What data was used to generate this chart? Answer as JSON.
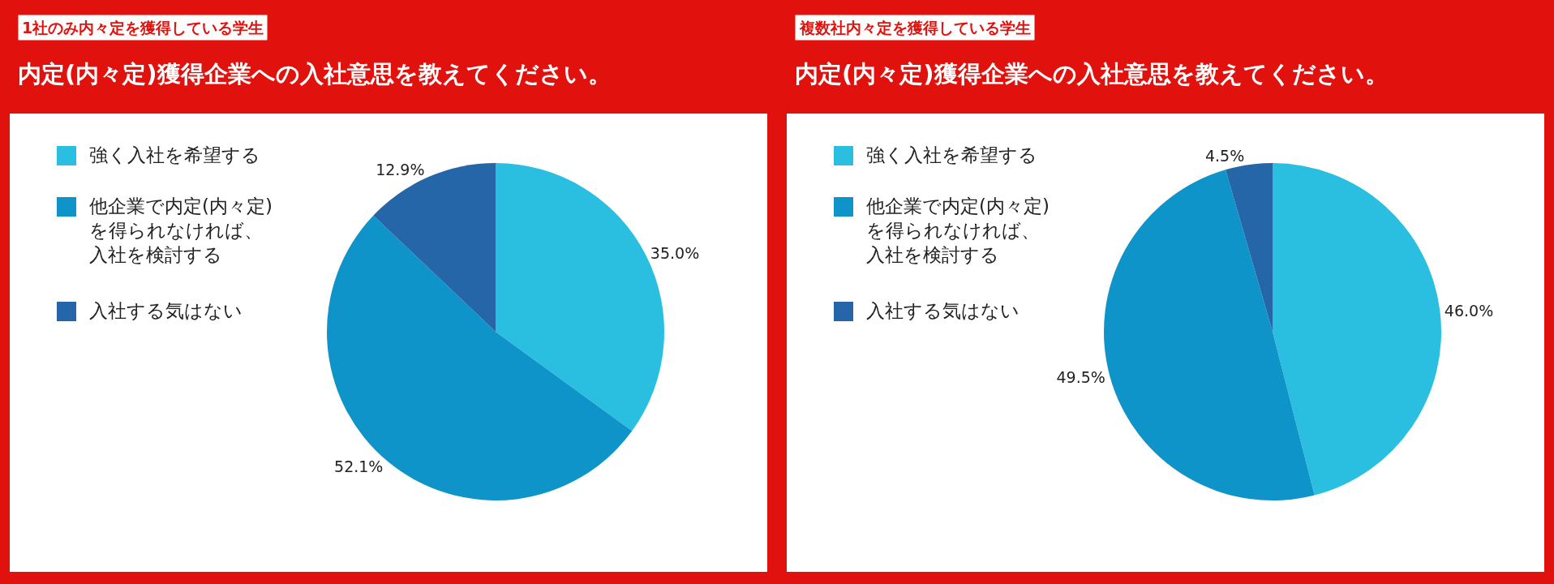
{
  "chart_data": [
    {
      "type": "pie",
      "subtitle": "1社のみ内々定を獲得している学生",
      "title": "内定(内々定)獲得企業への入社意思を教えてください。",
      "categories": [
        "強く入社を希望する",
        "他企業で内定(内々定)を得られなければ、入社を検討する",
        "入社する気はない"
      ],
      "values": [
        35.0,
        52.1,
        12.9
      ],
      "value_labels": [
        "35.0%",
        "52.1%",
        "12.9%"
      ],
      "colors": [
        "#2abfe0",
        "#0f94c9",
        "#2566a8"
      ],
      "legend": "left"
    },
    {
      "type": "pie",
      "subtitle": "複数社内々定を獲得している学生",
      "title": "内定(内々定)獲得企業への入社意思を教えてください。",
      "categories": [
        "強く入社を希望する",
        "他企業で内定(内々定)を得られなければ、入社を検討する",
        "入社する気はない"
      ],
      "values": [
        46.0,
        49.5,
        4.5
      ],
      "value_labels": [
        "46.0%",
        "49.5%",
        "4.5%"
      ],
      "colors": [
        "#2abfe0",
        "#0f94c9",
        "#2566a8"
      ],
      "legend": "left"
    }
  ]
}
